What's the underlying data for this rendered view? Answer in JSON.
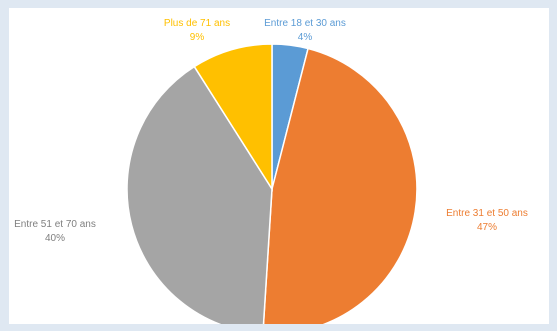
{
  "chart_data": {
    "type": "pie",
    "title": "",
    "categories": [
      "Entre 18 et 30 ans",
      "Entre 31 et 50 ans",
      "Entre 51 et 70 ans",
      "Plus de 71 ans"
    ],
    "values": [
      4,
      47,
      40,
      9
    ],
    "value_labels": [
      "4%",
      "47%",
      "40%",
      "9%"
    ],
    "colors": [
      "#5b9bd5",
      "#ed7d31",
      "#a5a5a5",
      "#ffc000"
    ],
    "start_angle_deg": 0,
    "direction": "clockwise",
    "legend": "none",
    "data_labels": "outside"
  }
}
